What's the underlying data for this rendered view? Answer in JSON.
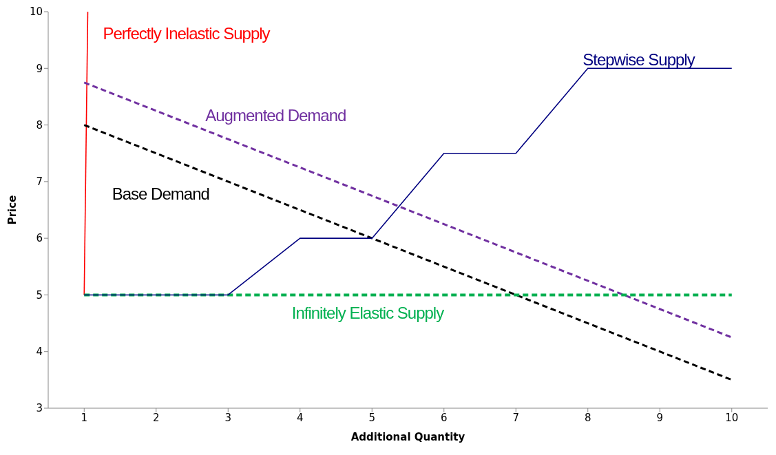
{
  "chart_data": {
    "type": "line",
    "xlabel": "Additional Quantity",
    "ylabel": "Price",
    "xlim": [
      0.5,
      10.5
    ],
    "xticks": [
      1,
      2,
      3,
      4,
      5,
      6,
      7,
      8,
      9,
      10
    ],
    "ylim": [
      3,
      10
    ],
    "yticks": [
      3,
      4,
      5,
      6,
      7,
      8,
      9,
      10
    ],
    "grid": false,
    "legend": false,
    "marker": "none",
    "series": [
      {
        "name": "Perfectly Inelastic Supply",
        "color": "#ff0000",
        "x": [
          1,
          1.05
        ],
        "values": [
          5,
          10
        ],
        "line_style": "solid"
      },
      {
        "name": "Augmented Demand",
        "color": "#7030a0",
        "x": [
          1,
          2,
          3,
          4,
          5,
          6,
          7,
          8,
          9,
          10
        ],
        "values": [
          8.75,
          8.25,
          7.75,
          7.25,
          6.75,
          6.25,
          5.75,
          5.25,
          4.75,
          4.25
        ],
        "line_style": "dashed"
      },
      {
        "name": "Base Demand",
        "color": "#000000",
        "x": [
          1,
          2,
          3,
          4,
          5,
          6,
          7,
          8,
          9,
          10
        ],
        "values": [
          8,
          7.5,
          7,
          6.5,
          6,
          5.5,
          5,
          4.5,
          4,
          3.5
        ],
        "line_style": "dashed"
      },
      {
        "name": "Infinitely Elastic Supply",
        "color": "#00b050",
        "x": [
          1,
          2,
          3,
          4,
          5,
          6,
          7,
          8,
          9,
          10
        ],
        "values": [
          5,
          5,
          5,
          5,
          5,
          5,
          5,
          5,
          5,
          5
        ],
        "line_style": "dashed"
      },
      {
        "name": "Stepwise Supply",
        "color": "#000080",
        "x": [
          1,
          2,
          3,
          4,
          5,
          6,
          7,
          8,
          9,
          10
        ],
        "values": [
          5,
          5,
          5,
          6,
          6,
          7.5,
          7.5,
          9,
          9,
          9
        ],
        "line_style": "solid"
      }
    ]
  }
}
